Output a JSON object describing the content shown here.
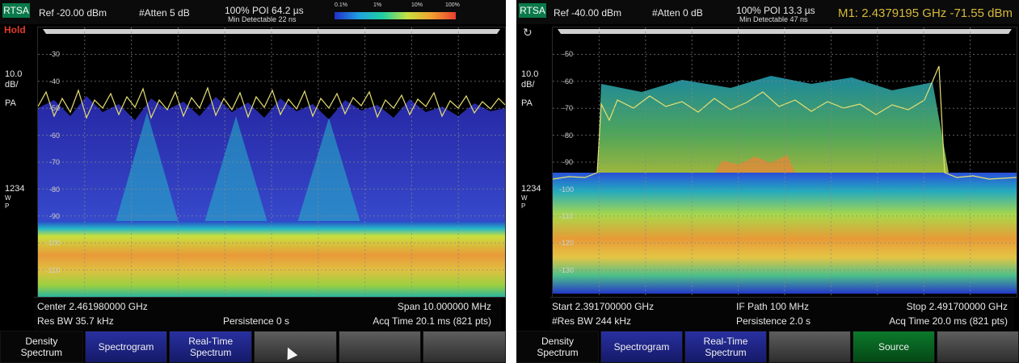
{
  "left_screen": {
    "header": {
      "mode": "RTSA",
      "ref_level": "Ref -20.00 dBm",
      "atten": "#Atten 5 dB",
      "poi": "100% POI 64.2 µs",
      "min_detect": "Min Detectable 22 ns",
      "scale_labels": [
        "0.1%",
        "1%",
        "10%",
        "100%"
      ]
    },
    "status_hold": "Hold",
    "side": {
      "scale": "10.0",
      "unit": "dB/",
      "detector": "PA",
      "trace_nums": "1234",
      "trace_w": "W",
      "trace_p": "P"
    },
    "y_ticks": [
      "-30",
      "-40",
      "-50",
      "-60",
      "-70",
      "-80",
      "-90",
      "-100",
      "-110"
    ],
    "footer": {
      "center": "Center 2.461980000 GHz",
      "span": "Span 10.000000 MHz",
      "res_bw": "Res BW 35.7 kHz",
      "persistence": "Persistence 0  s",
      "acq_time": "Acq Time 20.1 ms (821 pts)"
    },
    "softkeys": [
      {
        "label": "Density\nSpectrum",
        "style": "black"
      },
      {
        "label": "Spectrogram",
        "style": "blue"
      },
      {
        "label": "Real-Time\nSpectrum",
        "style": "blue"
      },
      {
        "label": "",
        "style": "gray"
      },
      {
        "label": "",
        "style": "gray"
      },
      {
        "label": "",
        "style": "gray"
      }
    ]
  },
  "right_screen": {
    "header": {
      "mode": "RTSA",
      "ref_level": "Ref -40.00 dBm",
      "atten": "#Atten 0 dB",
      "poi": "100% POI 13.3 µs",
      "min_detect": "Min Detectable 47 ns",
      "marker": "M1:  2.4379195 GHz  -71.55 dBm"
    },
    "side": {
      "scale": "10.0",
      "unit": "dB/",
      "detector": "PA",
      "trace_nums": "1234",
      "trace_w": "W",
      "trace_p": "P"
    },
    "y_ticks": [
      "-50",
      "-60",
      "-70",
      "-80",
      "-90",
      "-100",
      "-110",
      "-120",
      "-130"
    ],
    "footer": {
      "start": "Start 2.391700000 GHz",
      "if_path": "IF Path 100 MHz",
      "stop": "Stop 2.491700000 GHz",
      "res_bw": "#Res BW 244 kHz",
      "persistence": "Persistence 2.0  s",
      "acq_time": "Acq Time 20.0 ms (821 pts)"
    },
    "softkeys": [
      {
        "label": "Density\nSpectrum",
        "style": "black"
      },
      {
        "label": "Spectrogram",
        "style": "blue"
      },
      {
        "label": "Real-Time\nSpectrum",
        "style": "blue"
      },
      {
        "label": "",
        "style": "gray"
      },
      {
        "label": "Source",
        "style": "green"
      },
      {
        "label": "",
        "style": "gray"
      }
    ]
  }
}
